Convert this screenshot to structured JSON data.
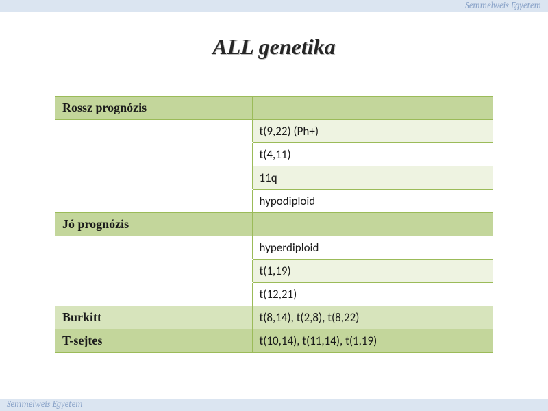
{
  "header": {
    "org": "Semmelweis Egyetem"
  },
  "footer": {
    "org": "Semmelweis Egyetem"
  },
  "title": "ALL genetika",
  "table": {
    "type": "table",
    "columns": [
      "category",
      "values"
    ],
    "border_color": "#9bbb59",
    "colors": {
      "header_row": "#c3d69b",
      "alt_row": "#eef3e1",
      "white": "#ffffff",
      "text": "#1a1a1a"
    },
    "font": {
      "body_family": "Calibri",
      "body_size_pt": 13,
      "header_family": "Times New Roman",
      "header_bold": true
    },
    "rows": [
      {
        "kind": "header",
        "left": "Rossz prognózis",
        "right": ""
      },
      {
        "kind": "value",
        "left": "",
        "right": "t(9,22) (Ph+)",
        "shade": "light"
      },
      {
        "kind": "value",
        "left": "",
        "right": "t(4,11)",
        "shade": "white"
      },
      {
        "kind": "value",
        "left": "",
        "right": "11q",
        "shade": "light"
      },
      {
        "kind": "value",
        "left": "",
        "right": "hypodiploid",
        "shade": "white"
      },
      {
        "kind": "header",
        "left": "Jó prognózis",
        "right": ""
      },
      {
        "kind": "value",
        "left": "",
        "right": "hyperdiploid",
        "shade": "white"
      },
      {
        "kind": "value",
        "left": "",
        "right": "t(1,19)",
        "shade": "light"
      },
      {
        "kind": "value",
        "left": "",
        "right": "t(12,21)",
        "shade": "white"
      },
      {
        "kind": "header2",
        "left": "Burkitt",
        "right": "t(8,14), t(2,8), t(8,22)",
        "shade": "light"
      },
      {
        "kind": "header2",
        "left": "T-sejtes",
        "right": "t(10,14), t(11,14), t(1,19)"
      }
    ]
  }
}
